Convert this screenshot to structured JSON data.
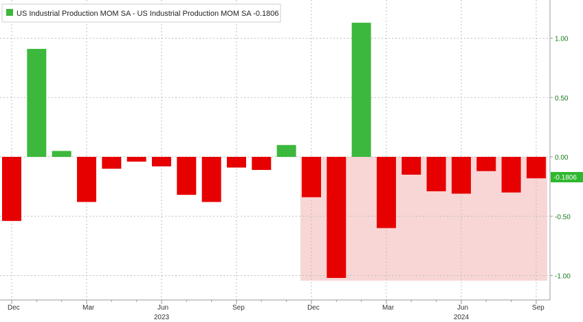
{
  "legend": {
    "label": "US Industrial Production MOM SA - US Industrial Production MOM SA",
    "last_value_text": "-0.1806",
    "swatch_color": "#3cb83c"
  },
  "last_value_tag": "-0.1806",
  "colors": {
    "positive": "#3cb83c",
    "negative": "#e60000",
    "shade": "#f8d6d6",
    "tag": "#2fb82f"
  },
  "chart_data": {
    "type": "bar",
    "title": "",
    "xlabel": "",
    "ylabel": "",
    "ylim": [
      -1.2,
      1.3
    ],
    "yticks": [
      1.0,
      0.5,
      0.0,
      -0.5,
      -1.0
    ],
    "ytick_labels": [
      "1.00",
      "0.50",
      "0.00",
      "-0.50",
      "-1.00"
    ],
    "y_axis_position": "right",
    "grid": true,
    "legend_position": "top-left",
    "categories": [
      "Dec 2022",
      "Jan 2023",
      "Feb 2023",
      "Mar 2023",
      "Apr 2023",
      "May 2023",
      "Jun 2023",
      "Jul 2023",
      "Aug 2023",
      "Sep 2023",
      "Oct 2023",
      "Nov 2023",
      "Dec 2023",
      "Jan 2024",
      "Feb 2024",
      "Mar 2024",
      "Apr 2024",
      "May 2024",
      "Jun 2024",
      "Jul 2024",
      "Aug 2024",
      "Sep 2024"
    ],
    "values": [
      -0.54,
      0.91,
      0.05,
      -0.38,
      -0.1,
      -0.04,
      -0.08,
      -0.32,
      -0.38,
      -0.09,
      -0.11,
      0.1,
      -0.34,
      -1.02,
      1.13,
      -0.6,
      -0.15,
      -0.29,
      -0.31,
      -0.12,
      -0.3,
      -0.1806
    ],
    "x_tick_labels": [
      {
        "index": 0,
        "label": "Dec"
      },
      {
        "index": 3,
        "label": "Mar"
      },
      {
        "index": 6,
        "label": "Jun"
      },
      {
        "index": 9,
        "label": "Sep"
      },
      {
        "index": 12,
        "label": "Dec"
      },
      {
        "index": 15,
        "label": "Mar"
      },
      {
        "index": 18,
        "label": "Jun"
      },
      {
        "index": 21,
        "label": "Sep"
      }
    ],
    "year_labels": [
      {
        "index": 6,
        "label": "2023"
      },
      {
        "index": 18,
        "label": "2024"
      }
    ],
    "shaded_region": {
      "start_index": 12,
      "end_index": 21,
      "y_from": -1.02,
      "y_to": 0
    }
  }
}
